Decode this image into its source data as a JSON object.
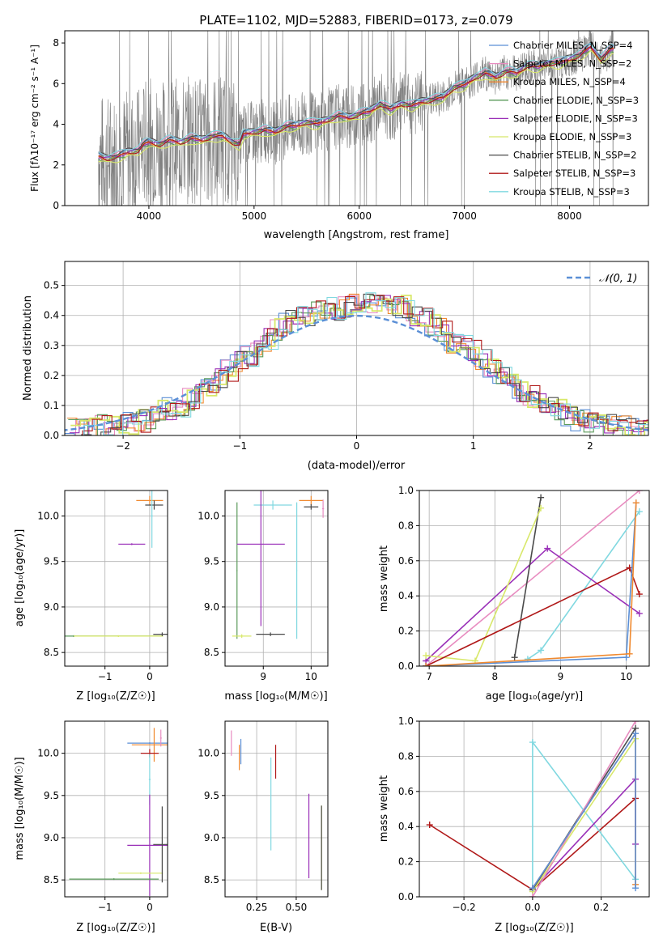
{
  "colors": {
    "chab_miles": "#5b8fd6",
    "salp_miles": "#e88cc0",
    "krou_miles": "#f08a30",
    "chab_elodie": "#5a9a5a",
    "salp_elodie": "#9a30b8",
    "krou_elodie": "#d8e86a",
    "chab_stelib": "#4a4a4a",
    "salp_stelib": "#b01818",
    "krou_stelib": "#80d8e0",
    "data": "#808080",
    "gauss": "#5b8fd6",
    "grid": "#b0b0b0"
  },
  "panels": {
    "spectrum": {
      "title": "PLATE=1102, MJD=52883, FIBERID=0173, z=0.079",
      "xlabel": "wavelength [Angstrom, rest frame]",
      "ylabel": "Flux [fλ10⁻¹⁷ erg cm⁻² s⁻¹ A⁻¹]",
      "legend": [
        "Chabrier MILES, N_SSP=4",
        "Salpeter MILES, N_SSP=2",
        "Kroupa MILES, N_SSP=4",
        "Chabrier ELODIE, N_SSP=3",
        "Salpeter ELODIE, N_SSP=3",
        "Kroupa ELODIE, N_SSP=3",
        "Chabrier STELIB, N_SSP=2",
        "Salpeter STELIB, N_SSP=3",
        "Kroupa STELIB, N_SSP=3"
      ]
    },
    "hist": {
      "xlabel": "(data-model)/error",
      "ylabel": "Normed distribution",
      "legend": "𝒩(0, 1)"
    },
    "age_z": {
      "xlabel": "Z [log₁₀(Z/Z☉)]",
      "ylabel": "age  [log₁₀(age/yr)]"
    },
    "age_mass": {
      "xlabel": "mass [log₁₀(M/M☉)]"
    },
    "mw_age": {
      "xlabel": "age  [log₁₀(age/yr)]",
      "ylabel": "mass weight"
    },
    "mass_z": {
      "xlabel": "Z [log₁₀(Z/Z☉)]",
      "ylabel": "mass [log₁₀(M/M☉)]"
    },
    "mass_ebv": {
      "xlabel": "E(B-V)"
    },
    "mw_z": {
      "xlabel": "Z [log₁₀(Z/Z☉)]",
      "ylabel": "mass weight"
    }
  },
  "chart_data": [
    {
      "type": "line",
      "id": "spectrum",
      "title": "PLATE=1102, MJD=52883, FIBERID=0173, z=0.079",
      "xlim": [
        3200,
        8750
      ],
      "ylim": [
        0,
        8.6
      ],
      "xticks": [
        4000,
        5000,
        6000,
        7000,
        8000
      ],
      "yticks": [
        0,
        2,
        4,
        6,
        8
      ],
      "model_continuum": {
        "x": [
          3520,
          3600,
          3700,
          3800,
          3900,
          3950,
          4000,
          4100,
          4200,
          4300,
          4400,
          4500,
          4600,
          4700,
          4800,
          4860,
          4900,
          5000,
          5100,
          5200,
          5300,
          5400,
          5500,
          5600,
          5700,
          5800,
          5900,
          6000,
          6100,
          6200,
          6300,
          6400,
          6500,
          6600,
          6700,
          6800,
          6900,
          7000,
          7100,
          7200,
          7300,
          7400,
          7500,
          7600,
          7700,
          7800,
          7900,
          8000,
          8100,
          8200,
          8300,
          8400
        ],
        "y": [
          2.4,
          2.3,
          2.4,
          2.6,
          2.7,
          3.0,
          3.1,
          3.0,
          3.2,
          3.1,
          3.3,
          3.2,
          3.4,
          3.4,
          3.1,
          3.0,
          3.5,
          3.6,
          3.7,
          3.6,
          3.9,
          3.9,
          4.1,
          4.0,
          4.2,
          4.4,
          4.3,
          4.5,
          4.6,
          5.0,
          4.7,
          5.0,
          4.9,
          5.1,
          5.2,
          5.3,
          5.8,
          5.9,
          6.3,
          6.5,
          6.3,
          6.6,
          6.5,
          6.9,
          6.8,
          7.0,
          7.0,
          7.2,
          7.4,
          7.8,
          7.2,
          7.7
        ]
      },
      "series": [
        {
          "name": "Chabrier MILES, N_SSP=4",
          "offset": 0.15
        },
        {
          "name": "Salpeter MILES, N_SSP=2",
          "offset": 0.3
        },
        {
          "name": "Kroupa MILES, N_SSP=4",
          "offset": 0.0
        },
        {
          "name": "Chabrier ELODIE, N_SSP=3",
          "offset": -0.15
        },
        {
          "name": "Salpeter ELODIE, N_SSP=3",
          "offset": 0.05
        },
        {
          "name": "Kroupa ELODIE, N_SSP=3",
          "offset": -0.35
        },
        {
          "name": "Chabrier STELIB, N_SSP=2",
          "offset": 0.25
        },
        {
          "name": "Salpeter STELIB, N_SSP=3",
          "offset": -0.05
        },
        {
          "name": "Kroupa STELIB, N_SSP=3",
          "offset": 0.35
        }
      ],
      "xlabel": "wavelength [Angstrom, rest frame]",
      "ylabel": "Flux [fλ10⁻¹⁷ erg cm⁻² s⁻¹ A⁻¹]"
    },
    {
      "type": "bar",
      "id": "hist",
      "xlim": [
        -2.5,
        2.5
      ],
      "ylim": [
        0,
        0.58
      ],
      "xticks": [
        -2,
        -1,
        0,
        1,
        2
      ],
      "yticks": [
        0.0,
        0.1,
        0.2,
        0.3,
        0.4,
        0.5
      ],
      "bin_width": 0.1,
      "base_values": [
        0.02,
        0.02,
        0.02,
        0.03,
        0.03,
        0.04,
        0.04,
        0.05,
        0.06,
        0.08,
        0.09,
        0.1,
        0.12,
        0.14,
        0.17,
        0.19,
        0.22,
        0.25,
        0.27,
        0.3,
        0.32,
        0.35,
        0.38,
        0.39,
        0.4,
        0.41,
        0.43,
        0.42,
        0.43,
        0.44,
        0.44,
        0.44,
        0.45,
        0.44,
        0.43,
        0.4,
        0.39,
        0.37,
        0.35,
        0.31,
        0.3,
        0.28,
        0.25,
        0.22,
        0.2,
        0.17,
        0.15,
        0.13,
        0.11,
        0.09,
        0.08,
        0.07,
        0.05,
        0.05,
        0.04,
        0.04,
        0.03,
        0.03,
        0.02,
        0.02
      ],
      "hist_x_start": -2.5,
      "gaussian": {
        "name": "𝒩(0, 1)",
        "mu": 0,
        "sigma": 1
      },
      "xlabel": "(data-model)/error",
      "ylabel": "Normed distribution"
    },
    {
      "type": "scatter",
      "id": "age_z",
      "xlim": [
        -1.9,
        0.4
      ],
      "ylim": [
        8.35,
        10.28
      ],
      "xticks": [
        -1,
        0
      ],
      "yticks": [
        8.5,
        9.0,
        9.5,
        10.0
      ],
      "errorbars": [
        {
          "s": "krou_miles",
          "x": 0.0,
          "y": 10.17,
          "xe": 0.3,
          "ye": 0.05
        },
        {
          "s": "chab_stelib",
          "x": 0.1,
          "y": 10.12,
          "xe": 0.2,
          "ye": 0.05
        },
        {
          "s": "krou_stelib",
          "x": 0.05,
          "y": 10.0,
          "xe": 0.02,
          "ye": 0.35
        },
        {
          "s": "salp_elodie",
          "x": -0.4,
          "y": 9.69,
          "xe": 0.3,
          "ye": 0.01
        },
        {
          "s": "chab_elodie",
          "x": -1.7,
          "y": 8.68,
          "xe": 2.0,
          "ye": 0.01
        },
        {
          "s": "krou_elodie",
          "x": -0.7,
          "y": 8.68,
          "xe": 1.0,
          "ye": 0.01
        },
        {
          "s": "chab_stelib",
          "x": 0.28,
          "y": 8.7,
          "xe": 0.2,
          "ye": 0.02
        }
      ],
      "xlabel": "Z [log₁₀(Z/Z☉)]",
      "ylabel": "age  [log₁₀(age/yr)]"
    },
    {
      "type": "scatter",
      "id": "age_mass",
      "xlim": [
        8.2,
        10.35
      ],
      "ylim": [
        8.35,
        10.28
      ],
      "xticks": [
        9,
        10
      ],
      "yticks": [
        8.5,
        9.0,
        9.5,
        10.0
      ],
      "errorbars": [
        {
          "s": "krou_miles",
          "x": 10.0,
          "y": 10.17,
          "xe": 0.25,
          "ye": 0.05
        },
        {
          "s": "krou_stelib",
          "x": 9.2,
          "y": 10.12,
          "xe": 0.4,
          "ye": 0.05
        },
        {
          "s": "chab_stelib",
          "x": 10.0,
          "y": 10.1,
          "xe": 0.15,
          "ye": 0.03
        },
        {
          "s": "salp_miles",
          "x": 10.25,
          "y": 10.08,
          "xe": 0.02,
          "ye": 0.1
        },
        {
          "s": "chab_elodie",
          "x": 8.45,
          "y": 9.4,
          "xe": 0.01,
          "ye": 0.75
        },
        {
          "s": "salp_elodie",
          "x": 8.95,
          "y": 9.69,
          "xe": 0.5,
          "ye": 0.9
        },
        {
          "s": "krou_elodie",
          "x": 8.55,
          "y": 8.68,
          "xe": 0.2,
          "ye": 0.02
        },
        {
          "s": "chab_stelib",
          "x": 9.15,
          "y": 8.7,
          "xe": 0.3,
          "ye": 0.02
        },
        {
          "s": "krou_stelib",
          "x": 9.7,
          "y": 9.4,
          "xe": 0.01,
          "ye": 0.75
        }
      ],
      "xlabel": "mass [log₁₀(M/M☉)]"
    },
    {
      "type": "line",
      "id": "mw_age",
      "xlim": [
        6.85,
        10.35
      ],
      "ylim": [
        0,
        1.0
      ],
      "xticks": [
        7,
        8,
        9,
        10
      ],
      "yticks": [
        0.0,
        0.2,
        0.4,
        0.6,
        0.8,
        1.0
      ],
      "series": [
        {
          "s": "salp_miles",
          "x": [
            6.95,
            10.2
          ],
          "y": [
            0.0,
            1.0
          ]
        },
        {
          "s": "krou_stelib",
          "x": [
            8.5,
            8.7,
            10.2
          ],
          "y": [
            0.04,
            0.09,
            0.88
          ]
        },
        {
          "s": "salp_elodie",
          "x": [
            6.95,
            8.8,
            10.2
          ],
          "y": [
            0.03,
            0.67,
            0.3
          ]
        },
        {
          "s": "chab_stelib",
          "x": [
            8.3,
            8.7
          ],
          "y": [
            0.05,
            0.96
          ]
        },
        {
          "s": "krou_elodie",
          "x": [
            6.95,
            7.7,
            8.7
          ],
          "y": [
            0.06,
            0.03,
            0.9
          ]
        },
        {
          "s": "salp_stelib",
          "x": [
            6.95,
            10.05,
            10.2
          ],
          "y": [
            0.0,
            0.56,
            0.41
          ]
        },
        {
          "s": "chab_miles",
          "x": [
            6.95,
            10.0,
            10.15
          ],
          "y": [
            0.0,
            0.05,
            0.93
          ]
        },
        {
          "s": "krou_miles",
          "x": [
            6.95,
            10.05,
            10.15
          ],
          "y": [
            0.0,
            0.07,
            0.93
          ]
        }
      ],
      "xlabel": "age  [log₁₀(age/yr)]",
      "ylabel": "mass weight"
    },
    {
      "type": "scatter",
      "id": "mass_z",
      "xlim": [
        -1.9,
        0.4
      ],
      "ylim": [
        8.3,
        10.38
      ],
      "xticks": [
        -1,
        0
      ],
      "yticks": [
        8.5,
        9.0,
        9.5,
        10.0
      ],
      "errorbars": [
        {
          "s": "chab_miles",
          "x": 0.0,
          "y": 10.12,
          "xe": 0.5,
          "ye": 0.01
        },
        {
          "s": "krou_miles",
          "x": 0.1,
          "y": 10.1,
          "xe": 0.5,
          "ye": 0.2
        },
        {
          "s": "salp_miles",
          "x": 0.25,
          "y": 10.18,
          "xe": 0.02,
          "ye": 0.1
        },
        {
          "s": "salp_stelib",
          "x": 0.0,
          "y": 10.0,
          "xe": 0.2,
          "ye": 0.05
        },
        {
          "s": "krou_stelib",
          "x": 0.0,
          "y": 9.69,
          "xe": 0.02,
          "ye": 0.3
        },
        {
          "s": "salp_elodie",
          "x": 0.0,
          "y": 8.91,
          "xe": 0.5,
          "ye": 0.6
        },
        {
          "s": "krou_elodie",
          "x": -0.2,
          "y": 8.58,
          "xe": 0.5,
          "ye": 0.01
        },
        {
          "s": "chab_elodie",
          "x": -0.8,
          "y": 8.51,
          "xe": 1.0,
          "ye": 0.01
        },
        {
          "s": "chab_stelib",
          "x": 0.28,
          "y": 8.92,
          "xe": 0.2,
          "ye": 0.45
        }
      ],
      "xlabel": "Z [log₁₀(Z/Z☉)]",
      "ylabel": "mass [log₁₀(M/M☉)]"
    },
    {
      "type": "scatter",
      "id": "mass_ebv",
      "xlim": [
        0.05,
        0.7
      ],
      "ylim": [
        8.3,
        10.38
      ],
      "xticks": [
        0.25,
        0.5
      ],
      "yticks": [
        8.5,
        9.0,
        9.5,
        10.0
      ],
      "errorbars": [
        {
          "s": "salp_miles",
          "x": 0.09,
          "y": 10.12,
          "xe": 0.0,
          "ye": 0.15
        },
        {
          "s": "krou_miles",
          "x": 0.14,
          "y": 9.95,
          "xe": 0.0,
          "ye": 0.15
        },
        {
          "s": "chab_miles",
          "x": 0.15,
          "y": 10.02,
          "xe": 0.0,
          "ye": 0.15
        },
        {
          "s": "krou_stelib",
          "x": 0.34,
          "y": 9.4,
          "xe": 0.0,
          "ye": 0.55
        },
        {
          "s": "salp_stelib",
          "x": 0.37,
          "y": 9.9,
          "xe": 0.0,
          "ye": 0.2
        },
        {
          "s": "salp_elodie",
          "x": 0.58,
          "y": 9.02,
          "xe": 0.0,
          "ye": 0.5
        },
        {
          "s": "krou_elodie",
          "x": 0.66,
          "y": 8.88,
          "xe": 0.0,
          "ye": 0.5
        },
        {
          "s": "chab_stelib",
          "x": 0.66,
          "y": 8.88,
          "xe": 0.0,
          "ye": 0.5
        }
      ],
      "xlabel": "E(B-V)"
    },
    {
      "type": "line",
      "id": "mw_z",
      "xlim": [
        -0.33,
        0.34
      ],
      "ylim": [
        0,
        1.0
      ],
      "xticks": [
        -0.2,
        0.0,
        0.2
      ],
      "yticks": [
        0.0,
        0.2,
        0.4,
        0.6,
        0.8,
        1.0
      ],
      "series": [
        {
          "s": "salp_stelib",
          "x": [
            -0.3,
            0.0,
            0.3
          ],
          "y": [
            0.41,
            0.04,
            0.56
          ]
        },
        {
          "s": "krou_stelib",
          "x": [
            0.0,
            0.0,
            0.3
          ],
          "y": [
            0.04,
            0.88,
            0.1
          ]
        },
        {
          "s": "salp_elodie",
          "x": [
            0.0,
            0.3,
            0.3
          ],
          "y": [
            0.04,
            0.67,
            0.3
          ]
        },
        {
          "s": "chab_stelib",
          "x": [
            0.0,
            0.3
          ],
          "y": [
            0.04,
            0.96
          ]
        },
        {
          "s": "krou_elodie",
          "x": [
            0.0,
            0.3
          ],
          "y": [
            0.03,
            0.9
          ]
        },
        {
          "s": "salp_miles",
          "x": [
            0.0,
            0.3
          ],
          "y": [
            0.0,
            1.0
          ]
        },
        {
          "s": "krou_miles",
          "x": [
            0.0,
            0.3,
            0.3
          ],
          "y": [
            0.05,
            0.93,
            0.07
          ]
        },
        {
          "s": "chab_miles",
          "x": [
            0.0,
            0.3,
            0.3
          ],
          "y": [
            0.05,
            0.93,
            0.05
          ]
        }
      ],
      "xlabel": "Z [log₁₀(Z/Z☉)]",
      "ylabel": "mass weight"
    }
  ]
}
